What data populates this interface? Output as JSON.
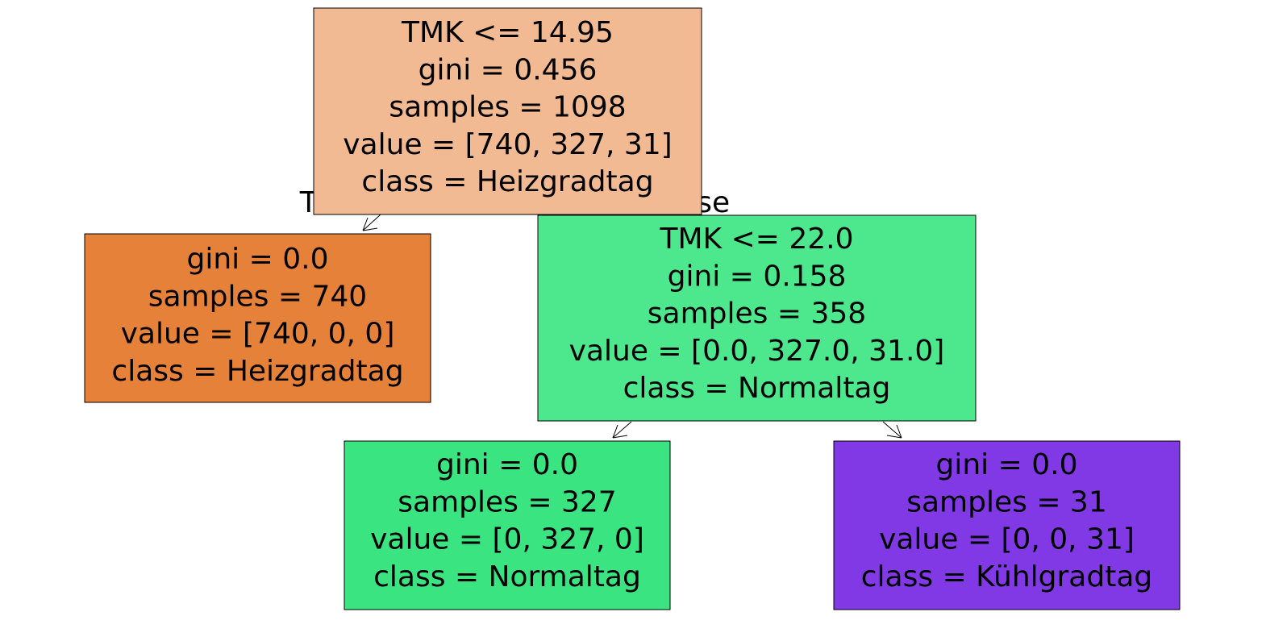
{
  "edge_labels": [
    "True",
    "False"
  ],
  "nodes": [
    {
      "lines": [
        "TMK <= 14.95",
        "gini = 0.456",
        "samples = 1098",
        "value = [740, 327, 31]",
        "class = Heizgradtag"
      ]
    },
    {
      "lines": [
        "gini = 0.0",
        "samples = 740",
        "value = [740, 0, 0]",
        "class = Heizgradtag"
      ]
    },
    {
      "lines": [
        "TMK <= 22.0",
        "gini = 0.158",
        "samples = 358",
        "value = [0.0, 327.0, 31.0]",
        "class = Normaltag"
      ]
    },
    {
      "lines": [
        "gini = 0.0",
        "samples = 327",
        "value = [0, 327, 0]",
        "class = Normaltag"
      ]
    },
    {
      "lines": [
        "gini = 0.0",
        "samples = 31",
        "value = [0, 0, 31]",
        "class = Kühlgradtag"
      ]
    }
  ]
}
